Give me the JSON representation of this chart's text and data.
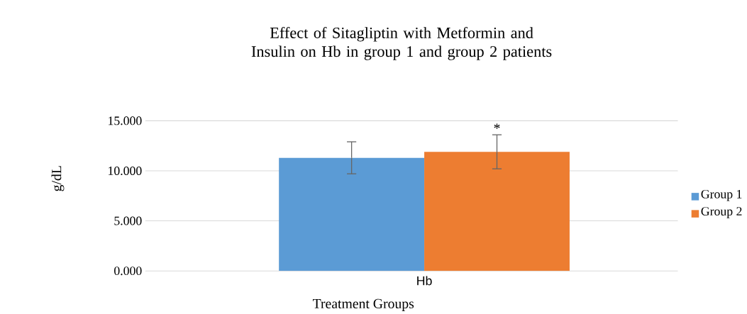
{
  "chart_data": {
    "type": "bar",
    "title": "Effect of Sitagliptin with Metformin and Insulin on Hb in group 1 and group 2 patients",
    "xlabel": "Treatment Groups",
    "ylabel": "g/dL",
    "categories": [
      "Hb"
    ],
    "series": [
      {
        "name": "Group 1",
        "color": "#5b9bd5",
        "values": [
          11.3
        ],
        "errors": [
          1.6
        ]
      },
      {
        "name": "Group 2",
        "color": "#ed7d31",
        "values": [
          11.9
        ],
        "errors": [
          1.7
        ]
      }
    ],
    "ylim": [
      0,
      15
    ],
    "yticks": [
      {
        "value": 0,
        "label": "0.000"
      },
      {
        "value": 5,
        "label": "5.000"
      },
      {
        "value": 10,
        "label": "10.000"
      },
      {
        "value": 15,
        "label": "15.000"
      }
    ],
    "grid": "y",
    "legend": "right",
    "annotations": [
      "*"
    ]
  }
}
